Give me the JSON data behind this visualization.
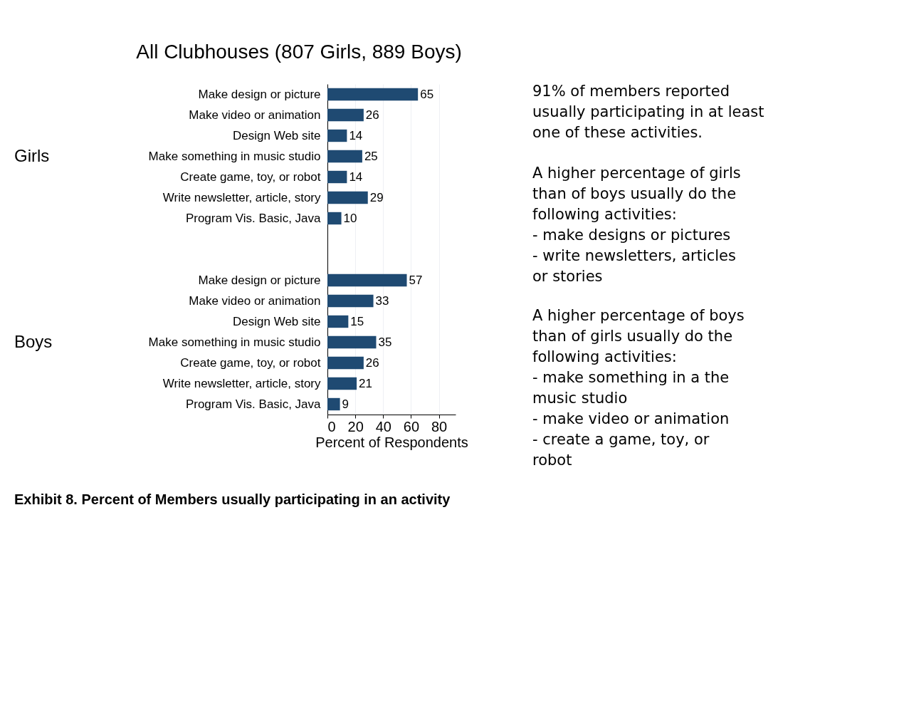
{
  "chart_data": {
    "type": "bar",
    "orientation": "horizontal",
    "title": "All Clubhouses (807 Girls, 889 Boys)",
    "xlabel": "Percent of Respondents",
    "categories": [
      "Make design or picture",
      "Make video or animation",
      "Design Web site",
      "Make something in music studio",
      "Create game, toy, or robot",
      "Write newsletter, article, story",
      "Program Vis. Basic, Java",
      null,
      null,
      "Make design or picture",
      "Make video or animation",
      "Design Web site",
      "Make something in music studio",
      "Create game, toy, or robot",
      "Write newsletter, article, story",
      "Program Vis. Basic, Java"
    ],
    "values": [
      65,
      26,
      14,
      25,
      14,
      29,
      10,
      null,
      null,
      57,
      33,
      15,
      35,
      26,
      21,
      9
    ],
    "color": "#1f4a72",
    "data_labels": true,
    "xlim": [
      0,
      92
    ],
    "xticks": [
      0,
      20,
      40,
      60,
      80
    ],
    "grid": "x",
    "annotations": [
      "Girls",
      "Boys",
      "Exhibit 8. Percent of Members usually participating in an activity",
      "91% of members reported\nusually participating in at least\none of these activities.",
      "A higher percentage of girls\nthan of boys usually do the\nfollowing activities:\n-      make designs or pictures\n-      write newsletters, articles\n       or stories",
      "A higher percentage of boys\nthan of girls usually do the\nfollowing activities:\n-      make something in a the\n       music studio\n-      make video or animation\n-      create a game, toy, or\n       robot"
    ]
  }
}
